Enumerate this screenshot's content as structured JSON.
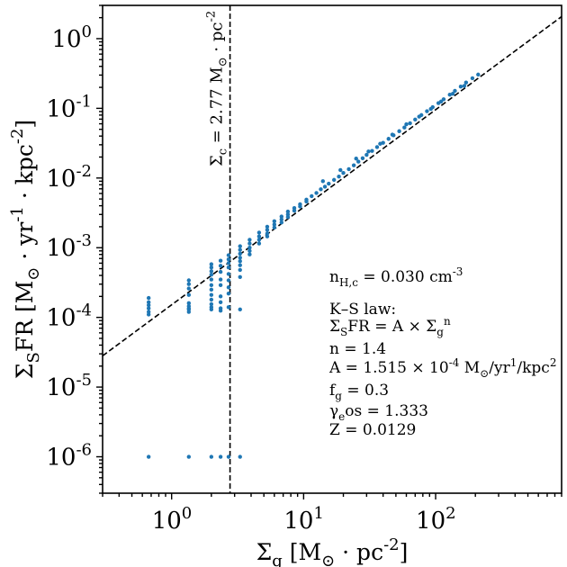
{
  "chart_data": {
    "type": "scatter",
    "title": "",
    "xlabel": "Σ_g [M_⊙ · pc^{-2}]",
    "ylabel": "Σ_SFR [M_⊙ · yr^{-1} · kpc^{-2}]",
    "xscale": "log",
    "yscale": "log",
    "xlim": [
      0.3,
      900
    ],
    "ylim": [
      3e-07,
      3
    ],
    "x_ticks": [
      1,
      10,
      100
    ],
    "y_ticks": [
      1e-06,
      1e-05,
      0.0001,
      0.001,
      0.01,
      0.1,
      1
    ],
    "grid": false,
    "colors": {
      "points": "#1f77b4",
      "lines": "#000000"
    },
    "fit_line": {
      "style": "dashed",
      "A": 0.0001515,
      "n": 1.4
    },
    "threshold_line": {
      "style": "dashed",
      "x": 2.77,
      "label": "Σ_c = 2.77 M_⊙ · pc^{-2}"
    },
    "annotations": [
      "n_{H,c} = 0.030 cm^{-3}",
      "K–S law:",
      "Σ_SFR = A × Σ_g^n",
      "n = 1.4",
      "A = 1.515 × 10^{-4} M_⊙/yr^1/kpc^2",
      "f_g = 0.3",
      "γ_eos = 1.333",
      "Z = 0.0129"
    ],
    "series": [
      {
        "x": [
          0.67,
          0.67,
          0.67,
          0.67,
          0.67,
          0.67,
          1.35,
          1.35,
          1.35,
          1.35,
          1.35,
          1.35,
          1.35,
          1.35,
          1.35,
          2.0,
          2.0,
          2.0,
          2.0,
          2.0,
          2.0,
          2.0,
          2.0,
          2.0,
          2.0,
          2.0,
          2.0,
          2.35,
          2.35,
          2.35,
          2.35,
          2.35,
          2.35,
          2.35,
          2.35,
          2.35,
          2.7,
          2.7,
          2.7,
          2.7,
          2.7,
          2.7,
          2.7,
          2.7,
          2.7,
          3.3,
          3.3,
          3.3,
          3.3,
          3.3,
          3.3,
          3.3,
          3.3,
          3.3,
          0.67,
          1.35,
          2.0,
          2.35,
          2.7,
          3.3,
          3.9,
          3.9,
          3.9,
          3.9,
          3.9,
          4.6,
          4.6,
          4.6,
          4.6,
          5.3,
          5.3,
          5.3,
          5.3,
          6.0,
          6.0,
          6.0,
          6.8,
          6.8,
          6.8,
          7.6,
          7.6,
          7.6,
          8.5,
          8.5,
          9.4,
          9.4,
          10.5,
          10.5,
          11.5,
          12.5,
          13.5,
          14.5,
          15.5,
          17.0,
          18.5,
          20.0,
          22.0,
          24.0,
          26.0,
          28.0,
          30.0,
          33.0,
          36.0,
          40.0,
          44.0,
          48.0,
          53.0,
          58.0,
          64.0,
          70.0,
          78.0,
          86.0,
          95.0,
          105.0,
          115.0,
          128.0,
          140.0,
          155.0,
          170.0,
          190.0,
          210.0,
          14.0,
          19.0,
          25.0,
          31.0,
          38.0,
          47.0,
          60.0,
          75.0,
          92.0,
          110.0,
          135.0,
          165.0
        ],
        "y": [
          0.00019,
          0.000165,
          0.00015,
          0.000135,
          0.00012,
          0.00011,
          0.00034,
          0.0003,
          0.00026,
          0.00016,
          0.000145,
          0.000135,
          0.00021,
          0.00013,
          0.00012,
          0.00058,
          0.00052,
          0.00046,
          0.00041,
          0.00035,
          0.00029,
          0.00025,
          0.00021,
          0.00018,
          0.000155,
          0.00014,
          0.00013,
          0.00065,
          0.00055,
          0.00045,
          0.00035,
          0.00029,
          0.0002,
          0.000165,
          0.000135,
          0.000125,
          0.00078,
          0.00068,
          0.0006,
          0.00052,
          0.00042,
          0.00034,
          0.00027,
          0.00022,
          0.00014,
          0.00105,
          0.00093,
          0.00082,
          0.00072,
          0.00064,
          0.00056,
          0.00048,
          0.00038,
          0.00013,
          1e-06,
          1e-06,
          1e-06,
          1e-06,
          1e-06,
          1e-06,
          0.0013,
          0.00115,
          0.001,
          0.0009,
          0.0008,
          0.00165,
          0.00145,
          0.0013,
          0.00115,
          0.002,
          0.0018,
          0.0016,
          0.00145,
          0.0024,
          0.00215,
          0.00195,
          0.0028,
          0.00255,
          0.0023,
          0.0033,
          0.003,
          0.00275,
          0.0037,
          0.0034,
          0.0042,
          0.0039,
          0.0049,
          0.0046,
          0.0055,
          0.0061,
          0.0069,
          0.0075,
          0.0083,
          0.0094,
          0.0105,
          0.0118,
          0.0134,
          0.0152,
          0.0172,
          0.0192,
          0.0215,
          0.0245,
          0.0278,
          0.032,
          0.0365,
          0.041,
          0.047,
          0.053,
          0.061,
          0.069,
          0.08,
          0.091,
          0.104,
          0.119,
          0.135,
          0.157,
          0.178,
          0.205,
          0.235,
          0.27,
          0.305,
          0.009,
          0.013,
          0.019,
          0.024,
          0.031,
          0.042,
          0.059,
          0.076,
          0.098,
          0.125,
          0.162,
          0.21
        ]
      }
    ]
  }
}
